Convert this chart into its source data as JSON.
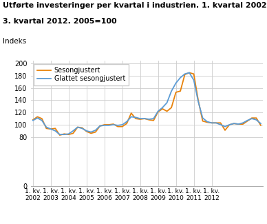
{
  "title_line1": "Utførte investeringer per kvartal i industrien. 1. kvartal 2002-",
  "title_line2": "3. kvartal 2012. 2005=100",
  "ylabel": "Indeks",
  "ylim": [
    0,
    205
  ],
  "yticks": [
    0,
    80,
    100,
    120,
    140,
    160,
    180,
    200
  ],
  "background_color": "#ffffff",
  "grid_color": "#cccccc",
  "line1_color": "#e8820a",
  "line2_color": "#5b9bd5",
  "line1_label": "Sesongjustert",
  "line2_label": "Glattet sesongjustert",
  "x_tick_labels": [
    "1. kv.\n2002",
    "1. kv.\n2003",
    "1. kv.\n2004",
    "1. kv.\n2005",
    "1. kv.\n2006",
    "1. kv.\n2007",
    "1. kv.\n2008",
    "1. kv.\n2009",
    "1. kv.\n2010",
    "1. kv.\n2011",
    "1. kv.\n2012"
  ],
  "sesongjustert": [
    108,
    113,
    110,
    94,
    93,
    94,
    83,
    85,
    84,
    86,
    96,
    95,
    89,
    86,
    88,
    98,
    100,
    100,
    101,
    97,
    97,
    102,
    119,
    110,
    109,
    110,
    108,
    107,
    121,
    126,
    122,
    128,
    153,
    155,
    182,
    185,
    183,
    140,
    106,
    104,
    103,
    103,
    103,
    91,
    100,
    102,
    101,
    101,
    106,
    111,
    111,
    99
  ],
  "glattet": [
    107,
    111,
    107,
    96,
    93,
    90,
    84,
    84,
    85,
    90,
    96,
    94,
    90,
    88,
    91,
    98,
    99,
    99,
    100,
    99,
    100,
    105,
    113,
    112,
    110,
    110,
    109,
    110,
    122,
    128,
    136,
    155,
    168,
    177,
    183,
    185,
    173,
    138,
    111,
    105,
    103,
    103,
    100,
    97,
    100,
    102,
    101,
    103,
    107,
    110,
    108,
    102
  ]
}
